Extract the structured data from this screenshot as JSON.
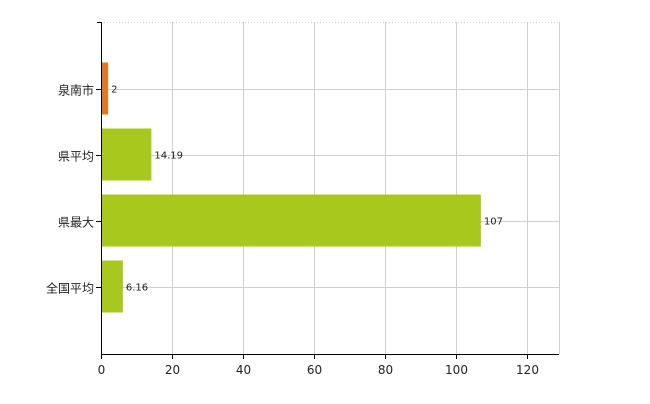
{
  "chart_data": {
    "type": "bar",
    "orientation": "horizontal",
    "categories": [
      "泉南市",
      "県平均",
      "県最大",
      "全国平均"
    ],
    "values": [
      2,
      14.19,
      107,
      6.16
    ],
    "data_labels": [
      "2",
      "14.19",
      "107",
      "6.16"
    ],
    "bar_colors": [
      "#e07a1f",
      "#a8c81e",
      "#a8c81e",
      "#a8c81e"
    ],
    "xlim": [
      0,
      129
    ],
    "xticks": [
      0,
      20,
      40,
      60,
      80,
      100,
      120
    ],
    "grid": true,
    "legend": "none",
    "title": "",
    "xlabel": "",
    "ylabel": ""
  }
}
